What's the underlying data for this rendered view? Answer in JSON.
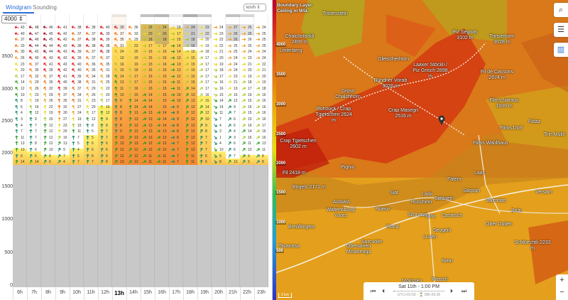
{
  "tabs": [
    {
      "label": "Windgram",
      "active": true
    },
    {
      "label": "Sounding",
      "active": false
    }
  ],
  "unit_select": "km/h ⇕",
  "altitude_select": "4000 ⇕",
  "altitude_ticks": [
    "3500",
    "3000",
    "2500",
    "2000",
    "1500",
    "1000",
    "500",
    "0"
  ],
  "selected_hour": "13h",
  "columns": [
    {
      "hour": "6h",
      "dir_top": 195,
      "dir_bottom": 280,
      "bl_top": 2100,
      "cloud": 0,
      "speeds": [
        43,
        40,
        37,
        33,
        30,
        26,
        23,
        20,
        17,
        14,
        12,
        10,
        8,
        6,
        4,
        3,
        4,
        7,
        11,
        13,
        13,
        6,
        14
      ]
    },
    {
      "hour": "7h",
      "dir_top": 200,
      "dir_bottom": 290,
      "bl_top": 2050,
      "cloud": 0,
      "speeds": [
        48,
        47,
        46,
        44,
        42,
        40,
        37,
        35,
        32,
        29,
        26,
        23,
        19,
        16,
        12,
        9,
        7,
        7,
        7,
        8,
        6,
        5,
        14
      ]
    },
    {
      "hour": "8h",
      "dir_top": 200,
      "dir_bottom": 300,
      "bl_top": 2000,
      "cloud": 0,
      "speeds": [
        46,
        45,
        45,
        44,
        44,
        43,
        41,
        39,
        37,
        35,
        32,
        29,
        26,
        22,
        19,
        15,
        12,
        12,
        12,
        12,
        10,
        8,
        6
      ]
    },
    {
      "hour": "9h",
      "dir_top": 200,
      "dir_bottom": 310,
      "bl_top": 2000,
      "cloud": 0,
      "speeds": [
        41,
        42,
        42,
        42,
        43,
        43,
        43,
        42,
        41,
        40,
        39,
        37,
        35,
        32,
        30,
        27,
        23,
        20,
        16,
        13,
        9,
        7,
        4
      ]
    },
    {
      "hour": "10h",
      "dir_top": 200,
      "dir_bottom": 280,
      "bl_top": 2100,
      "cloud": 0,
      "speeds": [
        38,
        37,
        37,
        38,
        39,
        39,
        40,
        40,
        39,
        38,
        37,
        34,
        31,
        27,
        24,
        19,
        15,
        11,
        7,
        5,
        4,
        5,
        7
      ]
    },
    {
      "hour": "11h",
      "dir_top": 200,
      "dir_bottom": 280,
      "bl_top": 2300,
      "cloud": 0,
      "speeds": [
        38,
        37,
        38,
        38,
        37,
        37,
        36,
        35,
        34,
        31,
        29,
        26,
        23,
        20,
        17,
        12,
        8,
        5,
        5,
        6,
        6,
        6,
        7
      ]
    },
    {
      "hour": "12h",
      "dir_top": 205,
      "dir_bottom": 290,
      "bl_top": 2750,
      "cloud": 0,
      "speeds": [
        40,
        39,
        39,
        38,
        38,
        37,
        35,
        31,
        28,
        25,
        22,
        20,
        17,
        16,
        12,
        9,
        8,
        7,
        7,
        6,
        6,
        6,
        8
      ]
    },
    {
      "hour": "13h",
      "dir_top": 210,
      "dir_bottom": 300,
      "bl_top": 3650,
      "cloud": 0.2,
      "speeds": [
        39,
        37,
        35,
        31,
        24,
        19,
        16,
        15,
        14,
        13,
        11,
        10,
        9,
        8,
        8,
        8,
        8,
        9,
        10,
        13,
        12,
        12,
        13
      ]
    },
    {
      "hour": "14h",
      "dir_top": 210,
      "dir_bottom": 320,
      "bl_top": 3750,
      "cloud": 0,
      "speeds": [
        36,
        33,
        29,
        23,
        20,
        19,
        19,
        18,
        17,
        17,
        16,
        15,
        14,
        14,
        13,
        13,
        13,
        13,
        13,
        13,
        12,
        12,
        12
      ]
    },
    {
      "hour": "15h",
      "dir_top": 0,
      "dir_bottom": 330,
      "bl_top": 4000,
      "cloud": 0.6,
      "speeds": [
        25,
        20,
        18,
        17,
        16,
        15,
        15,
        15,
        15,
        15,
        15,
        14,
        14,
        14,
        13,
        13,
        13,
        13,
        13,
        12,
        12,
        11,
        11
      ]
    },
    {
      "hour": "16h",
      "dir_top": 0,
      "dir_bottom": 340,
      "bl_top": 4000,
      "cloud": 0.7,
      "speeds": [
        24,
        20,
        18,
        17,
        16,
        16,
        16,
        16,
        15,
        15,
        15,
        15,
        15,
        15,
        14,
        14,
        14,
        13,
        13,
        12,
        12,
        11,
        11
      ]
    },
    {
      "hour": "17h",
      "dir_top": 0,
      "dir_bottom": 350,
      "bl_top": 3950,
      "cloud": 0.2,
      "speeds": [
        19,
        17,
        15,
        14,
        14,
        13,
        13,
        13,
        12,
        11,
        11,
        10,
        10,
        9,
        9,
        9,
        8,
        8,
        8,
        7,
        7,
        7,
        7
      ]
    },
    {
      "hour": "18h",
      "dir_top": 0,
      "dir_bottom": 270,
      "bl_top": 3600,
      "cloud": 0.8,
      "speeds": [
        24,
        21,
        18,
        16,
        15,
        15,
        15,
        15,
        15,
        15,
        14,
        13,
        13,
        12,
        12,
        12,
        12,
        12,
        12,
        12,
        12,
        11,
        11
      ]
    },
    {
      "hour": "19h",
      "dir_top": 0,
      "dir_bottom": 280,
      "bl_top": 2900,
      "cloud": 0.5,
      "speeds": [
        23,
        22,
        20,
        19,
        18,
        17,
        17,
        17,
        17,
        17,
        17,
        16,
        15,
        14,
        12,
        10,
        9,
        8,
        7,
        7,
        7,
        6,
        6
      ]
    },
    {
      "hour": "20h",
      "dir_top": 0,
      "dir_bottom": 60,
      "bl_top": 2050,
      "cloud": 0,
      "speeds": [
        24,
        23,
        22,
        22,
        21,
        20,
        19,
        18,
        17,
        16,
        16,
        15,
        14,
        14,
        11,
        7,
        4,
        3,
        1,
        4,
        10,
        5,
        8
      ]
    },
    {
      "hour": "21h",
      "dir_top": 0,
      "dir_bottom": 300,
      "bl_top": 1950,
      "cloud": 0.6,
      "speeds": [
        27,
        26,
        26,
        25,
        25,
        24,
        24,
        24,
        23,
        21,
        19,
        16,
        12,
        9,
        7,
        6,
        5,
        4,
        3,
        6,
        6,
        7,
        10
      ]
    },
    {
      "hour": "22h",
      "dir_top": 0,
      "dir_bottom": 310,
      "bl_top": 2000,
      "cloud": 0.4,
      "speeds": [
        25,
        26,
        26,
        25,
        24,
        23,
        21,
        20,
        19,
        18,
        17,
        16,
        15,
        15,
        15,
        15,
        16,
        14,
        16,
        11,
        10,
        9,
        5
      ]
    },
    {
      "hour": "23h",
      "dir_top": 0,
      "dir_bottom": 320,
      "bl_top": 2000,
      "cloud": 0,
      "speeds": [
        24,
        25,
        25,
        25,
        24,
        24,
        22,
        21,
        20,
        19,
        18,
        16,
        16,
        16,
        16,
        16,
        17,
        16,
        16,
        13,
        11,
        8,
        8
      ]
    }
  ],
  "terrain_top_m": 1850,
  "map": {
    "legend_title": "Boundary Layer Ceiling m MSL",
    "scale_ticks": [
      "4000",
      "3500",
      "3000",
      "2500",
      "2000",
      "1500",
      "1000",
      "500"
    ],
    "labels": [
      "Tristenstein",
      "Chalchstöckli 2499 m",
      "Leiterberg",
      "Gletscherhorn",
      "Bündner Vorab 3028 m",
      "Gross Chalchhorn",
      "Rotstock / Crap Tgietschen 2624 m",
      "Crap Masegn 2516 m",
      "Crap Tgietschen 2602 m",
      "Piz Segnas 3102 m",
      "Trinserhorn 3028 m",
      "Laaxer Stöckli / Piz Grisch 2898 m",
      "Fil de Cassons 2674 m",
      "Flims Naraus 1839 m",
      "Flims Dorf",
      "Fidaz",
      "Trin Mulin",
      "Flims Waldhaus",
      "Pigniu",
      "Siat",
      "Andiast",
      "Waltensburg/ Vuorz",
      "Rueun",
      "Schnaus",
      "Ilanz",
      "Ladir",
      "Ruschein",
      "Breil/Brigels",
      "Flond",
      "Surcuolm",
      "Obersaxen Misanenga",
      "Luven",
      "Tavanasa",
      "Morissen",
      "Laax",
      "Falera",
      "Sagogn",
      "Schluein",
      "Valendas",
      "Castrisch",
      "Versam",
      "Brün",
      "Ober Dutjen",
      "Sevgein",
      "Riein",
      "Schlüechtli 2233 m",
      "Pitasch",
      "Fil 2418 m",
      "Brigels 2171 m"
    ],
    "scale_bar": "2 km",
    "time": {
      "current": "Sat 11th - 1:00 PM",
      "info": "UTC+02:00 - ⌛ 08h-09:36"
    },
    "buttons": {
      "zoom_in": "+",
      "zoom_out": "−"
    },
    "icons": [
      "search-icon",
      "sliders-icon",
      "bar-chart-icon",
      "map-pin-icon"
    ]
  }
}
